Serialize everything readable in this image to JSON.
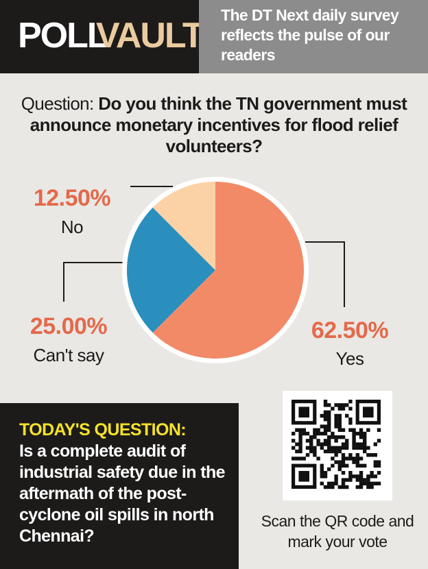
{
  "header": {
    "brand_first": "POLL",
    "brand_second": "VAULT",
    "tagline": "The DT Next daily survey reflects the pulse of our readers"
  },
  "question": {
    "label": "Question:",
    "text": "Do you think the TN government must announce monetary incentives for flood relief volunteers?"
  },
  "chart_data": {
    "type": "pie",
    "categories": [
      "Yes",
      "Can't say",
      "No"
    ],
    "values": [
      62.5,
      25,
      12.5
    ],
    "value_labels": [
      "62.50%",
      "25.00%",
      "12.50%"
    ],
    "colors": [
      "#f28a68",
      "#2a8fbd",
      "#fbd2a6"
    ]
  },
  "todays_question": {
    "label": "TODAY'S QUESTION:",
    "text": "Is a complete audit of industrial safety due in the aftermath of the post-cyclone oil spills in north Chennai?"
  },
  "qr_caption": "Scan the QR code and mark your vote"
}
